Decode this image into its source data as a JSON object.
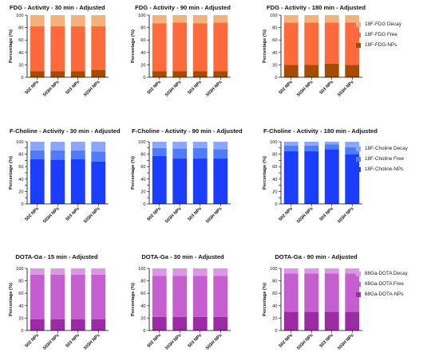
{
  "chart_data": [
    {
      "type": "bar",
      "stacked": true,
      "title": "FDG - Activity - 30 min - Adjusted",
      "ylabel": "Percentage (%)",
      "ylim": [
        0,
        100
      ],
      "yticks": [
        0,
        20,
        40,
        60,
        80,
        100
      ],
      "categories": [
        "502 NPs",
        "503H NPs",
        "503 NPs",
        "503H NPs"
      ],
      "series": [
        {
          "name": "18F-FDG-NPs",
          "values": [
            10,
            10,
            10,
            12
          ]
        },
        {
          "name": "18F-FDG Free",
          "values": [
            72,
            72,
            72,
            70
          ]
        },
        {
          "name": "18F-FDG Decay",
          "values": [
            18,
            18,
            18,
            18
          ]
        }
      ],
      "colors": [
        "#a64b00",
        "#ff6a3d",
        "#f2b27a"
      ]
    },
    {
      "type": "bar",
      "stacked": true,
      "title": "FDG - Activity - 90 min - Adjusted",
      "ylabel": "Percentage (%)",
      "ylim": [
        0,
        100
      ],
      "yticks": [
        0,
        20,
        40,
        60,
        80,
        100
      ],
      "categories": [
        "502 NPs",
        "503H NPs",
        "503 NPs",
        "503H NPs"
      ],
      "series": [
        {
          "name": "18F-FDG-NPs",
          "values": [
            10,
            10,
            10,
            10
          ]
        },
        {
          "name": "18F-FDG Free",
          "values": [
            77,
            78,
            77,
            78
          ]
        },
        {
          "name": "18F-FDG Decay",
          "values": [
            13,
            12,
            13,
            12
          ]
        }
      ],
      "colors": [
        "#a64b00",
        "#ff6a3d",
        "#f2b27a"
      ]
    },
    {
      "type": "bar",
      "stacked": true,
      "title": "FDG - Activity - 180 min - Adjusted",
      "ylabel": "Percentage (%)",
      "ylim": [
        0,
        100
      ],
      "yticks": [
        0,
        20,
        40,
        60,
        80,
        100
      ],
      "categories": [
        "502 NPs",
        "503H NPs",
        "503 NPs",
        "503H NPs"
      ],
      "series": [
        {
          "name": "18F-FDG-NPs",
          "values": [
            20,
            20,
            22,
            20
          ]
        },
        {
          "name": "18F-FDG Free",
          "values": [
            68,
            68,
            66,
            68
          ]
        },
        {
          "name": "18F-FDG Decay",
          "values": [
            12,
            12,
            12,
            12
          ]
        }
      ],
      "colors": [
        "#a64b00",
        "#ff6a3d",
        "#f2b27a"
      ]
    },
    {
      "type": "bar",
      "stacked": true,
      "title": "F-Choline - Activity - 30 min - Adjusted",
      "ylabel": "Percentage (%)",
      "ylim": [
        0,
        100
      ],
      "yticks": [
        0,
        10,
        20,
        30,
        40,
        50,
        60,
        70,
        80,
        90,
        100
      ],
      "categories": [
        "502 NPs",
        "503H NPs",
        "503 NPs",
        "503H NPs"
      ],
      "series": [
        {
          "name": "18F-Choline-NPs",
          "values": [
            72,
            71,
            72,
            68
          ]
        },
        {
          "name": "18F-Choline Free",
          "values": [
            14,
            15,
            14,
            16
          ]
        },
        {
          "name": "18F-Choline Decay",
          "values": [
            14,
            14,
            14,
            16
          ]
        }
      ],
      "colors": [
        "#1a3dff",
        "#4f7cff",
        "#8aa6ff"
      ]
    },
    {
      "type": "bar",
      "stacked": true,
      "title": "F-Choline - Activity - 90 min - Adjusted",
      "ylabel": "Percentage (%)",
      "ylim": [
        0,
        100
      ],
      "yticks": [
        0,
        10,
        20,
        30,
        40,
        50,
        60,
        70,
        80,
        90,
        100
      ],
      "categories": [
        "502 NPs",
        "503H NPs",
        "503 NPs",
        "503H NPs"
      ],
      "series": [
        {
          "name": "18F-Choline-NPs",
          "values": [
            77,
            73,
            73,
            73
          ]
        },
        {
          "name": "18F-Choline Free",
          "values": [
            13,
            16,
            17,
            15
          ]
        },
        {
          "name": "18F-Choline Decay",
          "values": [
            10,
            11,
            10,
            12
          ]
        }
      ],
      "colors": [
        "#1a3dff",
        "#4f7cff",
        "#8aa6ff"
      ]
    },
    {
      "type": "bar",
      "stacked": true,
      "title": "F-Choline - Activity - 180 min - Adjusted",
      "ylabel": "Percentage (%)",
      "ylim": [
        0,
        100
      ],
      "yticks": [
        0,
        10,
        20,
        30,
        40,
        50,
        60,
        70,
        80,
        90,
        100
      ],
      "categories": [
        "502 NPs",
        "503H NPs",
        "503 NPs",
        "503H NPs"
      ],
      "series": [
        {
          "name": "18F-Choline-NPs",
          "values": [
            85,
            85,
            88,
            80
          ]
        },
        {
          "name": "18F-Choline Free",
          "values": [
            9,
            9,
            8,
            11
          ]
        },
        {
          "name": "18F-Choline Decay",
          "values": [
            6,
            6,
            4,
            9
          ]
        }
      ],
      "colors": [
        "#1a3dff",
        "#4f7cff",
        "#8aa6ff"
      ]
    },
    {
      "type": "bar",
      "stacked": true,
      "title": "DOTA-Ga - 15 min - Adjusted",
      "ylabel": "Percentage (%)",
      "ylim": [
        0,
        100
      ],
      "yticks": [
        0,
        20,
        40,
        60,
        80,
        100
      ],
      "categories": [
        "502 NPs",
        "503H NPs",
        "503 NPs",
        "503H NPs"
      ],
      "series": [
        {
          "name": "68Ga-DOTA-NPs",
          "values": [
            18,
            18,
            18,
            18
          ]
        },
        {
          "name": "68Ga-DOTA Free",
          "values": [
            72,
            72,
            72,
            72
          ]
        },
        {
          "name": "68Ga-DOTA Decay",
          "values": [
            10,
            10,
            10,
            10
          ]
        }
      ],
      "colors": [
        "#9b2ba5",
        "#c55fcf",
        "#dd95e5"
      ]
    },
    {
      "type": "bar",
      "stacked": true,
      "title": "DOTA-Ga - 30 min - Adjusted",
      "ylabel": "Percentage (%)",
      "ylim": [
        0,
        100
      ],
      "yticks": [
        0,
        20,
        40,
        60,
        80,
        100
      ],
      "categories": [
        "502 NPs",
        "503H NPs",
        "503 NPs",
        "503H NPs"
      ],
      "series": [
        {
          "name": "68Ga-DOTA-NPs",
          "values": [
            22,
            22,
            22,
            22
          ]
        },
        {
          "name": "68Ga-DOTA Free",
          "values": [
            66,
            66,
            66,
            66
          ]
        },
        {
          "name": "68Ga-DOTA Decay",
          "values": [
            12,
            12,
            12,
            12
          ]
        }
      ],
      "colors": [
        "#9b2ba5",
        "#c55fcf",
        "#dd95e5"
      ]
    },
    {
      "type": "bar",
      "stacked": true,
      "title": "DOTA-Ga - 90 min - Adjusted",
      "ylabel": "Percentage (%)",
      "ylim": [
        0,
        100
      ],
      "yticks": [
        0,
        20,
        40,
        60,
        80,
        100
      ],
      "categories": [
        "502 NPs",
        "503H NPs",
        "503 NPs",
        "503H NPs"
      ],
      "series": [
        {
          "name": "68Ga-DOTA-NPs",
          "values": [
            30,
            30,
            30,
            30
          ]
        },
        {
          "name": "68Ga-DOTA Free",
          "values": [
            62,
            62,
            62,
            62
          ]
        },
        {
          "name": "68Ga-DOTA Decay",
          "values": [
            8,
            8,
            8,
            8
          ]
        }
      ],
      "colors": [
        "#9b2ba5",
        "#c55fcf",
        "#dd95e5"
      ]
    }
  ],
  "legends": [
    {
      "items": [
        {
          "label": "18F-FDG Decay",
          "color": "#f2b27a"
        },
        {
          "label": "18F-FDG Free",
          "color": "#ff6a3d"
        },
        {
          "label": "18F-FDG-NPs",
          "color": "#a64b00"
        }
      ]
    },
    {
      "items": [
        {
          "label": "18F-Choline Decay",
          "color": "#8aa6ff"
        },
        {
          "label": "18F-Choline Free",
          "color": "#4f7cff"
        },
        {
          "label": "18F-Choline-NPs",
          "color": "#1a3dff"
        }
      ]
    },
    {
      "items": [
        {
          "label": "68Ga-DOTA Decay",
          "color": "#dd95e5"
        },
        {
          "label": "68Ga-DOTA Free",
          "color": "#c55fcf"
        },
        {
          "label": "68Ga-DOTA-NPs",
          "color": "#9b2ba5"
        }
      ]
    }
  ]
}
